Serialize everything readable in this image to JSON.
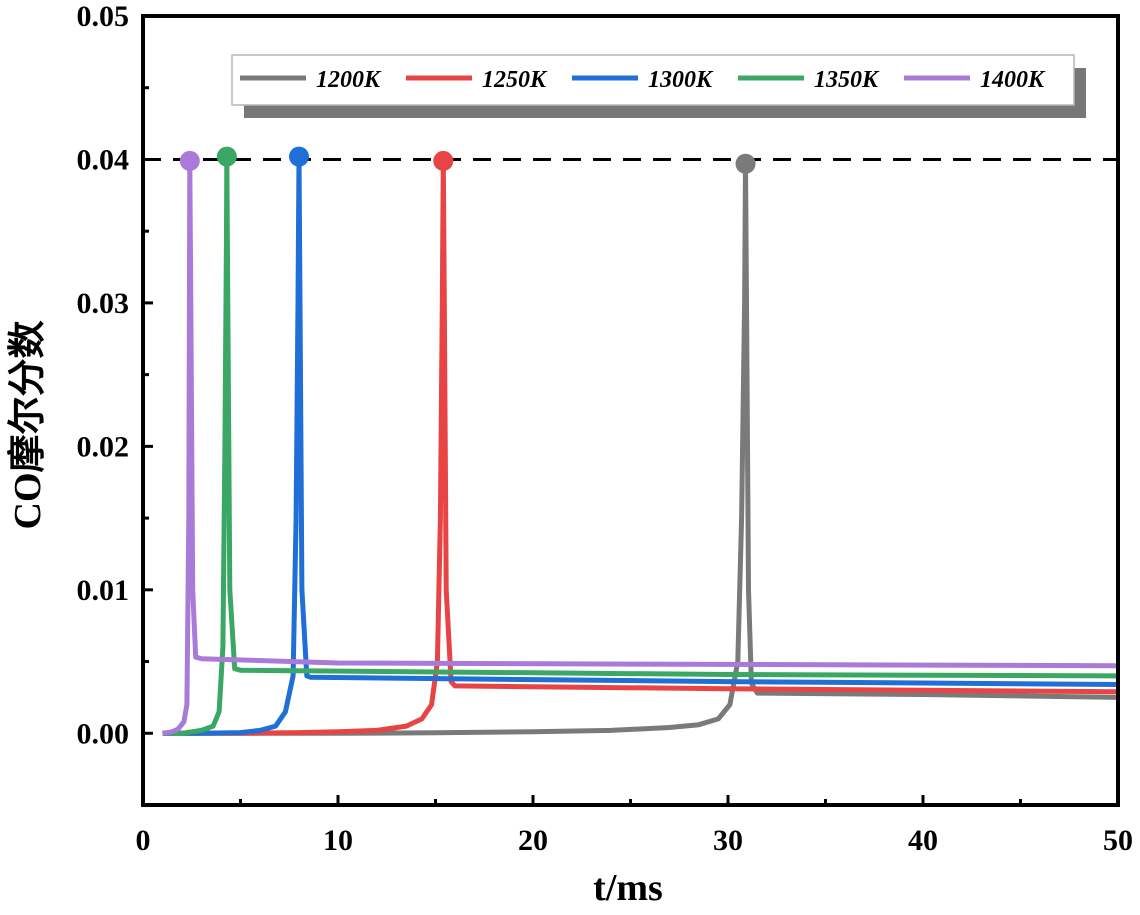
{
  "chart_data": {
    "type": "line",
    "title": "",
    "xlabel": "t/ms",
    "ylabel": "CO摩尔分数",
    "xlim": [
      0,
      50
    ],
    "ylim": [
      -0.005,
      0.05
    ],
    "x_ticks": [
      0,
      10,
      20,
      30,
      40,
      50
    ],
    "x_tick_labels": [
      "0",
      "10",
      "20",
      "30",
      "40",
      "50"
    ],
    "y_ticks": [
      0.0,
      0.01,
      0.02,
      0.03,
      0.04,
      0.05
    ],
    "y_tick_labels": [
      "0.00",
      "0.01",
      "0.02",
      "0.03",
      "0.04",
      "0.05"
    ],
    "grid": false,
    "legend_position": "top",
    "reference_line": {
      "y": 0.04,
      "style": "dashed"
    },
    "series": [
      {
        "name": "1200K",
        "color": "#7a7a7a",
        "peak": {
          "x": 30.9,
          "y": 0.0397
        },
        "points": [
          [
            1,
            0
          ],
          [
            10,
            0
          ],
          [
            15,
            3e-05
          ],
          [
            20,
            0.0001
          ],
          [
            24,
            0.0002
          ],
          [
            27,
            0.0004
          ],
          [
            28.5,
            0.0006
          ],
          [
            29.5,
            0.001
          ],
          [
            30.1,
            0.002
          ],
          [
            30.5,
            0.005
          ],
          [
            30.7,
            0.015
          ],
          [
            30.85,
            0.03
          ],
          [
            30.9,
            0.0397
          ],
          [
            30.95,
            0.03
          ],
          [
            31.05,
            0.01
          ],
          [
            31.2,
            0.0035
          ],
          [
            31.5,
            0.0028
          ],
          [
            40,
            0.0027
          ],
          [
            50,
            0.0025
          ]
        ]
      },
      {
        "name": "1250K",
        "color": "#e84445",
        "peak": {
          "x": 15.4,
          "y": 0.0399
        },
        "points": [
          [
            1,
            0
          ],
          [
            5,
            0
          ],
          [
            8,
            5e-05
          ],
          [
            10,
            0.0001
          ],
          [
            12,
            0.0002
          ],
          [
            13.5,
            0.0005
          ],
          [
            14.3,
            0.001
          ],
          [
            14.8,
            0.002
          ],
          [
            15.1,
            0.005
          ],
          [
            15.25,
            0.015
          ],
          [
            15.35,
            0.03
          ],
          [
            15.4,
            0.0399
          ],
          [
            15.45,
            0.03
          ],
          [
            15.55,
            0.01
          ],
          [
            15.8,
            0.0036
          ],
          [
            16,
            0.0033
          ],
          [
            30,
            0.0031
          ],
          [
            50,
            0.0029
          ]
        ]
      },
      {
        "name": "1300K",
        "color": "#1f6fd6",
        "peak": {
          "x": 8.0,
          "y": 0.0402
        },
        "points": [
          [
            1,
            0
          ],
          [
            3,
            0
          ],
          [
            5,
            5e-05
          ],
          [
            6,
            0.0002
          ],
          [
            6.8,
            0.0005
          ],
          [
            7.3,
            0.0015
          ],
          [
            7.7,
            0.004
          ],
          [
            7.85,
            0.015
          ],
          [
            7.95,
            0.03
          ],
          [
            8.0,
            0.0402
          ],
          [
            8.05,
            0.03
          ],
          [
            8.15,
            0.01
          ],
          [
            8.4,
            0.004
          ],
          [
            8.6,
            0.0039
          ],
          [
            30,
            0.0036
          ],
          [
            50,
            0.0034
          ]
        ]
      },
      {
        "name": "1350K",
        "color": "#3aa864",
        "peak": {
          "x": 4.3,
          "y": 0.0402
        },
        "points": [
          [
            1,
            0
          ],
          [
            2,
            0
          ],
          [
            3,
            0.0002
          ],
          [
            3.6,
            0.0005
          ],
          [
            3.9,
            0.0015
          ],
          [
            4.1,
            0.006
          ],
          [
            4.2,
            0.02
          ],
          [
            4.28,
            0.035
          ],
          [
            4.3,
            0.0402
          ],
          [
            4.35,
            0.03
          ],
          [
            4.45,
            0.01
          ],
          [
            4.7,
            0.0045
          ],
          [
            5,
            0.0044
          ],
          [
            30,
            0.0041
          ],
          [
            50,
            0.004
          ]
        ]
      },
      {
        "name": "1400K",
        "color": "#a97ad8",
        "peak": {
          "x": 2.4,
          "y": 0.0399
        },
        "points": [
          [
            1,
            0
          ],
          [
            1.5,
            0.0001
          ],
          [
            1.8,
            0.0003
          ],
          [
            2.1,
            0.0008
          ],
          [
            2.25,
            0.002
          ],
          [
            2.35,
            0.015
          ],
          [
            2.4,
            0.0399
          ],
          [
            2.45,
            0.03
          ],
          [
            2.55,
            0.01
          ],
          [
            2.7,
            0.0053
          ],
          [
            3,
            0.0052
          ],
          [
            10,
            0.0049
          ],
          [
            30,
            0.0048
          ],
          [
            50,
            0.0047
          ]
        ]
      }
    ]
  }
}
